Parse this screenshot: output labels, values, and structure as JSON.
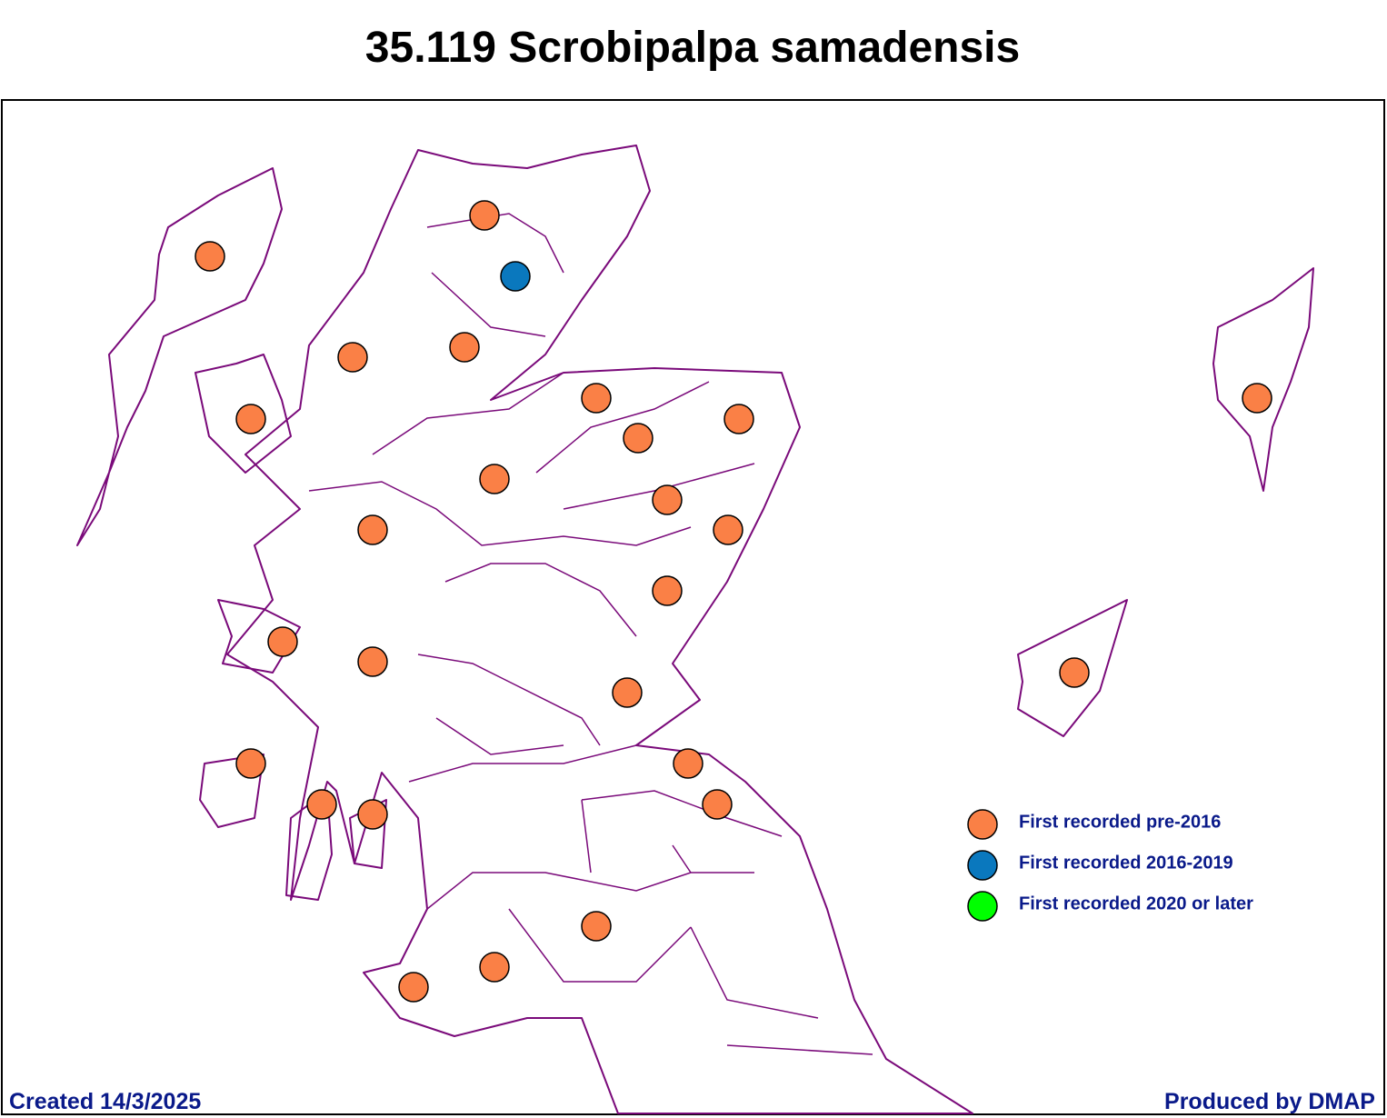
{
  "title": "35.119 Scrobipalpa samadensis",
  "legend": {
    "items": [
      {
        "label": "First recorded pre-2016",
        "color": "#fa8046"
      },
      {
        "label": "First recorded 2016-2019",
        "color": "#0a78be"
      },
      {
        "label": "First recorded 2020 or later",
        "color": "#00ff00"
      }
    ]
  },
  "footer": {
    "created": "Created 14/3/2025",
    "produced": "Produced by DMAP"
  }
}
